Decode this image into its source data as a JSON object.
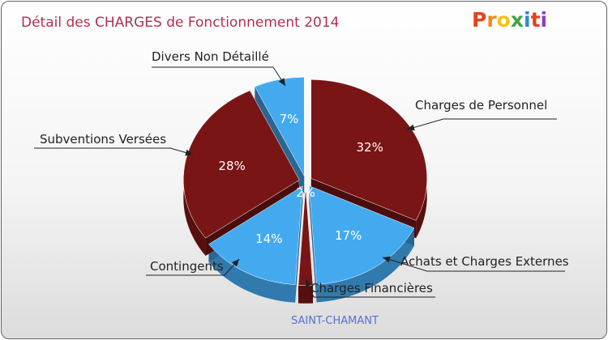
{
  "logo": {
    "letters": [
      "P",
      "r",
      "o",
      "x",
      "i",
      "t",
      "i"
    ],
    "colors": [
      "#e8401c",
      "#f08a1c",
      "#f5c21c",
      "#3da545",
      "#2f86d6",
      "#e8401c",
      "#8a3fc6"
    ]
  },
  "commune": "SAINT-CHAMANT",
  "chart_data": {
    "type": "pie",
    "title": "Détail des CHARGES de Fonctionnement 2014",
    "three_d": true,
    "exploded": true,
    "slices": [
      {
        "name": "Charges de Personnel",
        "value": 32,
        "label": "32%",
        "color": "#7a1515"
      },
      {
        "name": "Achats et Charges Externes",
        "value": 17,
        "label": "17%",
        "color": "#44aaf0"
      },
      {
        "name": "Charges Financières",
        "value": 2,
        "label": "2%",
        "color": "#7a1515"
      },
      {
        "name": "Contingents",
        "value": 14,
        "label": "14%",
        "color": "#44aaf0"
      },
      {
        "name": "Subventions Versées",
        "value": 28,
        "label": "28%",
        "color": "#7a1515"
      },
      {
        "name": "Divers Non Détaillé",
        "value": 7,
        "label": "7%",
        "color": "#44aaf0"
      }
    ]
  }
}
